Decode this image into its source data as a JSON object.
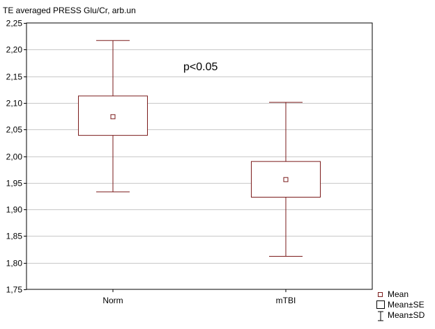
{
  "chart_data": {
    "type": "box",
    "title": "TE averaged PRESS Glu/Cr, arb.un",
    "categories": [
      "Norm",
      "mTBI"
    ],
    "series": [
      {
        "category": "Norm",
        "mean": 2.074,
        "se_low": 2.039,
        "se_high": 2.113,
        "sd_low": 1.933,
        "sd_high": 2.217
      },
      {
        "category": "mTBI",
        "mean": 1.956,
        "se_low": 1.923,
        "se_high": 1.99,
        "sd_low": 1.812,
        "sd_high": 2.101
      }
    ],
    "ylim": [
      1.75,
      2.25
    ],
    "yticks": [
      "1,75",
      "1,80",
      "1,85",
      "1,90",
      "1,95",
      "2,00",
      "2,05",
      "2,10",
      "2,15",
      "2,20",
      "2,25"
    ],
    "annotation": "p<0.05",
    "legend": {
      "placement": "bottom-right",
      "items": [
        "Mean",
        "Mean±SE",
        "Mean±SD"
      ]
    },
    "grid": true,
    "colors": {
      "box": "#7a1a1a",
      "grid": "#c8c8c8",
      "frame": "#000000"
    }
  }
}
